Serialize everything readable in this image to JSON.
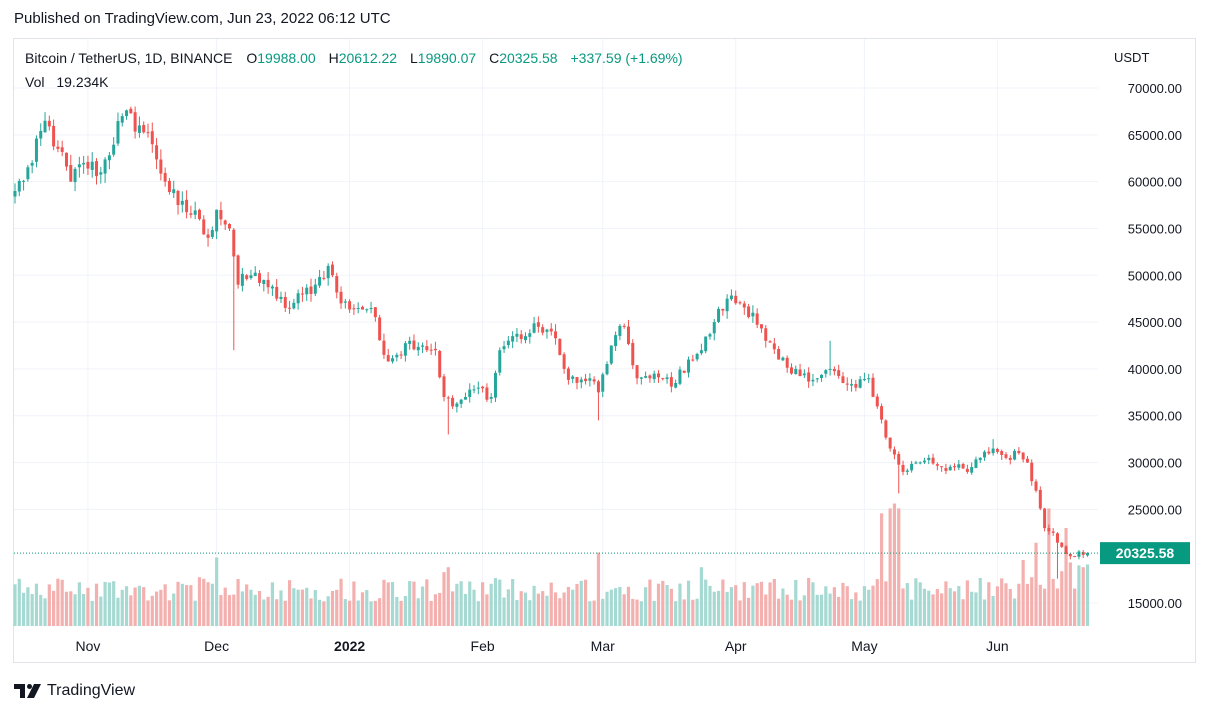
{
  "header": {
    "published": "Published on TradingView.com, Jun 23, 2022 06:12 UTC"
  },
  "legend": {
    "symbol": "Bitcoin / TetherUS, 1D, BINANCE",
    "o_label": "O",
    "o_value": "19988.00",
    "h_label": "H",
    "h_value": "20612.22",
    "l_label": "L",
    "l_value": "19890.07",
    "c_label": "C",
    "c_value": "20325.58",
    "change": "+337.59 (+1.69%)",
    "vol_label": "Vol",
    "vol_value": "19.234K"
  },
  "axis": {
    "currency": "USDT"
  },
  "footer": {
    "brand": "TradingView"
  },
  "colors": {
    "up": "#26a69a",
    "down": "#ef5350",
    "up_text": "#089981",
    "price_label_bg": "#089981"
  },
  "chart_data": {
    "type": "candlestick",
    "y_ticks": [
      "70000.00",
      "65000.00",
      "60000.00",
      "55000.00",
      "50000.00",
      "45000.00",
      "40000.00",
      "35000.00",
      "30000.00",
      "25000.00",
      "20000.00",
      "15000.00"
    ],
    "ylim": [
      12500,
      72500
    ],
    "x_ticks": [
      {
        "label": "Nov",
        "index": 17
      },
      {
        "label": "Dec",
        "index": 47
      },
      {
        "label": "2022",
        "index": 78
      },
      {
        "label": "Feb",
        "index": 109
      },
      {
        "label": "Mar",
        "index": 137
      },
      {
        "label": "Apr",
        "index": 168
      },
      {
        "label": "May",
        "index": 198
      },
      {
        "label": "Jun",
        "index": 229
      }
    ],
    "last_price": 20325.58,
    "last_price_label": "20325.58",
    "anchors": [
      [
        0,
        59000
      ],
      [
        4,
        62000
      ],
      [
        7,
        66500
      ],
      [
        10,
        63500
      ],
      [
        13,
        60000
      ],
      [
        16,
        62000
      ],
      [
        20,
        61000
      ],
      [
        25,
        67000
      ],
      [
        29,
        66000
      ],
      [
        32,
        64000
      ],
      [
        35,
        60000
      ],
      [
        38,
        57500
      ],
      [
        43,
        56000
      ],
      [
        45,
        54000
      ],
      [
        47,
        57000
      ],
      [
        50,
        55000
      ],
      [
        52,
        49000
      ],
      [
        55,
        50000
      ],
      [
        58,
        49500
      ],
      [
        61,
        47500
      ],
      [
        64,
        46500
      ],
      [
        67,
        48000
      ],
      [
        70,
        49000
      ],
      [
        73,
        51000
      ],
      [
        76,
        47000
      ],
      [
        80,
        46500
      ],
      [
        83,
        46500
      ],
      [
        86,
        41500
      ],
      [
        89,
        41500
      ],
      [
        92,
        43000
      ],
      [
        95,
        42500
      ],
      [
        98,
        42000
      ],
      [
        100,
        37000
      ],
      [
        102,
        36000
      ],
      [
        105,
        37000
      ],
      [
        108,
        38000
      ],
      [
        111,
        37000
      ],
      [
        113,
        42000
      ],
      [
        116,
        43500
      ],
      [
        119,
        43500
      ],
      [
        122,
        44500
      ],
      [
        125,
        44000
      ],
      [
        128,
        40000
      ],
      [
        131,
        38500
      ],
      [
        134,
        39000
      ],
      [
        136,
        37500
      ],
      [
        139,
        42500
      ],
      [
        142,
        44500
      ],
      [
        145,
        39000
      ],
      [
        148,
        39000
      ],
      [
        151,
        39000
      ],
      [
        154,
        38500
      ],
      [
        157,
        41000
      ],
      [
        160,
        42000
      ],
      [
        163,
        45000
      ],
      [
        166,
        47500
      ],
      [
        169,
        47000
      ],
      [
        172,
        46000
      ],
      [
        175,
        43000
      ],
      [
        178,
        41000
      ],
      [
        181,
        39500
      ],
      [
        184,
        39500
      ],
      [
        187,
        39000
      ],
      [
        190,
        40000
      ],
      [
        193,
        38500
      ],
      [
        196,
        38000
      ],
      [
        199,
        39000
      ],
      [
        201,
        36000
      ],
      [
        204,
        31500
      ],
      [
        207,
        29000
      ],
      [
        210,
        30000
      ],
      [
        213,
        30500
      ],
      [
        216,
        29500
      ],
      [
        219,
        29500
      ],
      [
        222,
        29000
      ],
      [
        225,
        30500
      ],
      [
        228,
        31500
      ],
      [
        231,
        30500
      ],
      [
        234,
        31000
      ],
      [
        236,
        30000
      ],
      [
        238,
        27000
      ],
      [
        240,
        23000
      ],
      [
        242,
        22500
      ],
      [
        244,
        21000
      ],
      [
        246,
        20000
      ],
      [
        248,
        20500
      ],
      [
        250,
        20325.58
      ]
    ],
    "big_wicks": [
      {
        "index": 51,
        "low": 42000
      },
      {
        "index": 101,
        "low": 33000
      },
      {
        "index": 136,
        "low": 34500
      },
      {
        "index": 190,
        "high": 43000
      },
      {
        "index": 206,
        "low": 26700
      },
      {
        "index": 228,
        "high": 32500
      },
      {
        "index": 243,
        "low": 17600
      }
    ],
    "volume_spikes": [
      {
        "index": 47,
        "v": 14
      },
      {
        "index": 100,
        "v": 11
      },
      {
        "index": 101,
        "v": 12
      },
      {
        "index": 136,
        "v": 15
      },
      {
        "index": 160,
        "v": 12
      },
      {
        "index": 202,
        "v": 23
      },
      {
        "index": 204,
        "v": 24
      },
      {
        "index": 205,
        "v": 25
      },
      {
        "index": 206,
        "v": 24
      },
      {
        "index": 238,
        "v": 17
      },
      {
        "index": 241,
        "v": 24
      },
      {
        "index": 245,
        "v": 20
      }
    ]
  }
}
